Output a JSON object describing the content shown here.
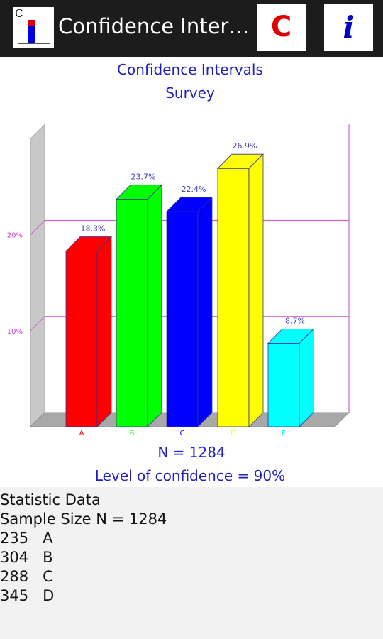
{
  "app": {
    "title": "Confidence Inter…",
    "icon_letter": "C",
    "c_button": "C",
    "info_button": "i"
  },
  "chart_data": {
    "type": "bar",
    "title": "Confidence Intervals",
    "subtitle": "Survey",
    "categories": [
      "A",
      "B",
      "C",
      "D",
      "E"
    ],
    "values": [
      18.3,
      23.7,
      22.4,
      26.9,
      8.7
    ],
    "value_labels": [
      "18.3%",
      "23.7%",
      "22.4%",
      "26.9%",
      "8.7%"
    ],
    "bar_colors": [
      "#ff0000",
      "#00ff00",
      "#0000ff",
      "#ffff00",
      "#00ffff"
    ],
    "label_colors": [
      "#ff0000",
      "#00ff00",
      "#0000ff",
      "#ffff00",
      "#00ffff"
    ],
    "yticks": [
      10,
      20
    ],
    "ytick_labels": [
      "10%",
      "20%"
    ],
    "ylim": [
      0,
      30
    ],
    "grid": true,
    "footer_n": "N = 1284",
    "footer_confidence": "Level of confidence = 90%"
  },
  "stats": {
    "heading": "Statistic Data",
    "sample_size": "Sample Size N = 1284",
    "rows": [
      "235   A",
      "304   B",
      "288   C",
      "345   D"
    ]
  }
}
